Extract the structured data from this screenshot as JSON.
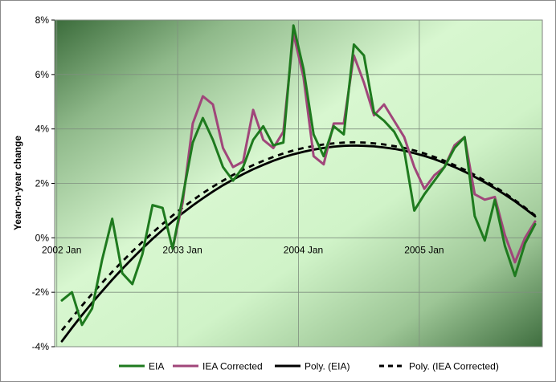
{
  "chart_data": {
    "type": "line",
    "title": "",
    "xlabel": "",
    "ylabel": "Year-on-year change",
    "ylim": [
      -4,
      8
    ],
    "yticks": [
      "-4%",
      "-2%",
      "0%",
      "2%",
      "4%",
      "6%",
      "8%"
    ],
    "ytick_values": [
      -4,
      -2,
      0,
      2,
      4,
      6,
      8
    ],
    "x_tick_labels": [
      "2002 Jan",
      "2003 Jan",
      "2004 Jan",
      "2005 Jan"
    ],
    "x_tick_month_index": [
      0,
      12,
      24,
      36
    ],
    "x_month_range": [
      0,
      47
    ],
    "grid": true,
    "legend_position": "bottom",
    "colors": {
      "eia": "#1e7a1e",
      "iea_corrected": "#a0467a",
      "poly_eia": "#000000",
      "poly_iea_corrected": "#000000",
      "background_light": "#d8f7d0",
      "background_dark": "#3b6c3b"
    },
    "series": [
      {
        "name": "EIA",
        "key": "eia",
        "style": "solid",
        "values": [
          -2.3,
          -2.0,
          -3.2,
          -2.6,
          -0.8,
          0.7,
          -1.3,
          -1.7,
          -0.6,
          1.2,
          1.1,
          -0.4,
          1.5,
          3.5,
          4.4,
          3.6,
          2.6,
          2.1,
          2.6,
          3.6,
          4.1,
          3.4,
          3.5,
          7.8,
          6.2,
          3.8,
          3.0,
          4.1,
          3.8,
          7.1,
          6.7,
          4.6,
          4.3,
          3.9,
          3.2,
          1.0,
          1.6,
          2.1,
          2.6,
          3.3,
          3.7,
          0.8,
          -0.1,
          1.4,
          -0.3,
          -1.4,
          -0.2,
          0.5
        ]
      },
      {
        "name": "IEA Corrected",
        "key": "iea_corrected",
        "style": "solid",
        "values": [
          null,
          null,
          null,
          null,
          null,
          null,
          null,
          null,
          null,
          null,
          null,
          -0.4,
          1.3,
          4.2,
          5.2,
          4.9,
          3.3,
          2.6,
          2.8,
          4.7,
          3.6,
          3.3,
          3.9,
          7.5,
          5.9,
          3.0,
          2.7,
          4.2,
          4.2,
          6.7,
          5.7,
          4.5,
          4.9,
          4.3,
          3.7,
          2.6,
          1.8,
          2.3,
          2.6,
          3.4,
          3.7,
          1.6,
          1.4,
          1.5,
          0.1,
          -0.9,
          0.0,
          0.6
        ]
      },
      {
        "name": "Poly. (EIA)",
        "key": "poly_eia",
        "style": "solid",
        "values": [
          -3.8,
          -3.31,
          -2.84,
          -2.39,
          -1.96,
          -1.54,
          -1.14,
          -0.76,
          -0.39,
          -0.04,
          0.29,
          0.61,
          0.91,
          1.19,
          1.45,
          1.7,
          1.93,
          2.14,
          2.34,
          2.52,
          2.68,
          2.83,
          2.96,
          3.07,
          3.16,
          3.24,
          3.3,
          3.35,
          3.38,
          3.39,
          3.38,
          3.36,
          3.32,
          3.27,
          3.2,
          3.11,
          3.01,
          2.89,
          2.75,
          2.6,
          2.43,
          2.24,
          2.04,
          1.82,
          1.59,
          1.34,
          1.07,
          0.79
        ]
      },
      {
        "name": "Poly. (IEA Corrected)",
        "key": "poly_iea_corrected",
        "style": "dashed",
        "values": [
          -3.4,
          -2.94,
          -2.49,
          -2.06,
          -1.65,
          -1.25,
          -0.87,
          -0.5,
          -0.15,
          0.19,
          0.51,
          0.82,
          1.11,
          1.38,
          1.64,
          1.88,
          2.1,
          2.31,
          2.5,
          2.67,
          2.83,
          2.97,
          3.1,
          3.21,
          3.3,
          3.37,
          3.43,
          3.47,
          3.5,
          3.51,
          3.5,
          3.47,
          3.43,
          3.37,
          3.3,
          3.21,
          3.1,
          2.97,
          2.83,
          2.67,
          2.5,
          2.31,
          2.1,
          1.88,
          1.64,
          1.38,
          1.11,
          0.82
        ]
      }
    ]
  }
}
